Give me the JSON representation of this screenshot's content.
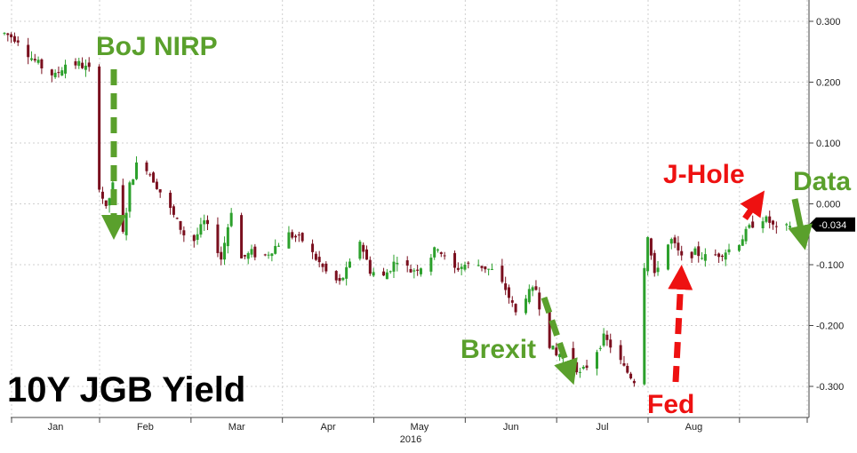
{
  "chart_data": {
    "type": "candlestick",
    "title": "10Y JGB Yield",
    "x_axis": {
      "tick_labels": [
        "Jan",
        "Feb",
        "Mar",
        "Apr",
        "May",
        "Jun",
        "Jul",
        "Aug"
      ],
      "year_label": "2016",
      "range_days": [
        0,
        240
      ]
    },
    "y_axis": {
      "position": "right",
      "ticks": [
        "0.300",
        "0.200",
        "0.100",
        "0.000",
        "-0.100",
        "-0.200",
        "-0.300"
      ],
      "range": [
        -0.35,
        0.32
      ]
    },
    "grid": true,
    "last_value": -0.034,
    "last_value_label": "-0.034",
    "colors": {
      "up": "#2ca02c",
      "down": "#7a0f1e",
      "green_annotation": "#5aa02c",
      "red_annotation": "#ee1111"
    },
    "annotations": [
      {
        "text": "BoJ NIRP",
        "color": "green",
        "arrow": "down"
      },
      {
        "text": "Brexit",
        "color": "green",
        "arrow": "down"
      },
      {
        "text": "Fed",
        "color": "red",
        "arrow": "up"
      },
      {
        "text": "J-Hole",
        "color": "red",
        "arrow": "up"
      },
      {
        "text": "Data",
        "color": "green",
        "arrow": "down"
      }
    ],
    "anchors": [
      [
        0,
        0.28
      ],
      [
        4,
        0.27
      ],
      [
        8,
        0.24
      ],
      [
        12,
        0.22
      ],
      [
        15,
        0.21
      ],
      [
        18,
        0.23
      ],
      [
        22,
        0.23
      ],
      [
        25,
        0.22
      ],
      [
        27,
        0.22
      ],
      [
        28,
        0.03
      ],
      [
        30,
        -0.01
      ],
      [
        33,
        0.05
      ],
      [
        35,
        -0.05
      ],
      [
        37,
        0.03
      ],
      [
        40,
        0.08
      ],
      [
        43,
        0.05
      ],
      [
        46,
        0.02
      ],
      [
        50,
        -0.02
      ],
      [
        53,
        -0.05
      ],
      [
        56,
        -0.06
      ],
      [
        59,
        -0.03
      ],
      [
        62,
        -0.06
      ],
      [
        64,
        -0.09
      ],
      [
        67,
        -0.01
      ],
      [
        70,
        -0.09
      ],
      [
        73,
        -0.08
      ],
      [
        76,
        -0.09
      ],
      [
        80,
        -0.07
      ],
      [
        84,
        -0.05
      ],
      [
        88,
        -0.06
      ],
      [
        92,
        -0.09
      ],
      [
        96,
        -0.12
      ],
      [
        99,
        -0.13
      ],
      [
        102,
        -0.1
      ],
      [
        105,
        -0.06
      ],
      [
        108,
        -0.11
      ],
      [
        112,
        -0.12
      ],
      [
        116,
        -0.09
      ],
      [
        120,
        -0.11
      ],
      [
        124,
        -0.1
      ],
      [
        128,
        -0.07
      ],
      [
        132,
        -0.11
      ],
      [
        136,
        -0.1
      ],
      [
        140,
        -0.1
      ],
      [
        144,
        -0.11
      ],
      [
        148,
        -0.14
      ],
      [
        151,
        -0.18
      ],
      [
        154,
        -0.15
      ],
      [
        157,
        -0.14
      ],
      [
        160,
        -0.22
      ],
      [
        163,
        -0.25
      ],
      [
        166,
        -0.24
      ],
      [
        170,
        -0.28
      ],
      [
        173,
        -0.26
      ],
      [
        177,
        -0.22
      ],
      [
        180,
        -0.24
      ],
      [
        183,
        -0.27
      ],
      [
        186,
        -0.29
      ],
      [
        188,
        -0.15
      ],
      [
        190,
        -0.05
      ],
      [
        192,
        -0.12
      ],
      [
        194,
        -0.08
      ],
      [
        197,
        -0.06
      ],
      [
        200,
        -0.09
      ],
      [
        204,
        -0.08
      ],
      [
        208,
        -0.09
      ],
      [
        212,
        -0.08
      ],
      [
        216,
        -0.07
      ],
      [
        220,
        -0.04
      ],
      [
        223,
        -0.02
      ],
      [
        226,
        -0.03
      ],
      [
        229,
        -0.05
      ],
      [
        232,
        -0.034
      ]
    ]
  }
}
